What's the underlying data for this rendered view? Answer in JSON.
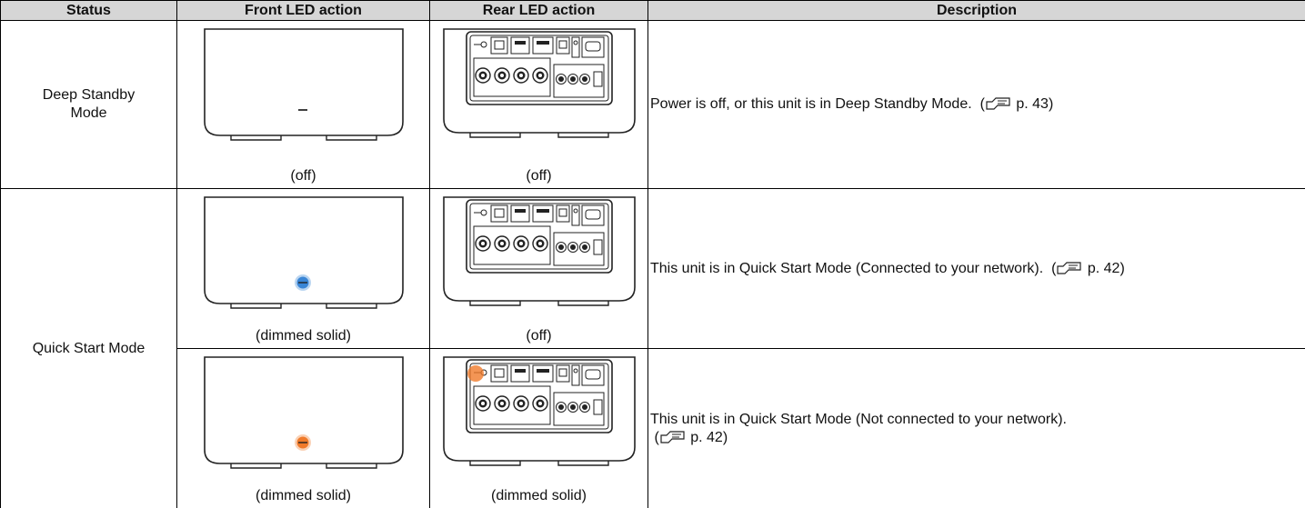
{
  "table": {
    "header": [
      "Status",
      "Front LED action",
      "Rear LED action",
      "Description"
    ],
    "groups": [
      {
        "status": "Deep Standby Mode",
        "rows": [
          {
            "front": "(off)",
            "rear": "(off)",
            "description": "Power is off, or this unit is in Deep Standby Mode.",
            "ref": "p. 43"
          }
        ]
      },
      {
        "status": "Quick Start Mode",
        "rows": [
          {
            "front": "(dimmed solid)",
            "rear": "(off)",
            "description": "This unit is in Quick Start Mode (Connected to your network).",
            "ref": "p. 42"
          },
          {
            "front": "(dimmed solid)",
            "rear": "(dimmed solid)",
            "description": "This unit is in Quick Start Mode (Not connected to your network).",
            "ref": "p. 42"
          }
        ]
      }
    ]
  }
}
